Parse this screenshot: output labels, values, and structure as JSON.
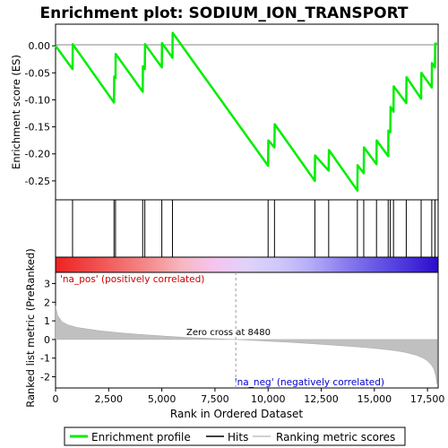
{
  "chart_data": {
    "type": "line",
    "title": "Enrichment plot: SODIUM_ION_TRANSPORT",
    "xlabel": "Rank in Ordered Dataset",
    "es_panel": {
      "ylabel": "Enrichment score (ES)",
      "ylim": [
        -0.285,
        0.04
      ],
      "yticks": [
        0.0,
        -0.05,
        -0.1,
        -0.15,
        -0.2,
        -0.25
      ],
      "ytick_labels": [
        "0.00",
        "-0.05",
        "-0.10",
        "-0.15",
        "-0.20",
        "-0.25"
      ],
      "series": [
        {
          "name": "Enrichment profile",
          "color": "#00ee00",
          "x": [
            0,
            800,
            810,
            2750,
            2760,
            2820,
            2830,
            4100,
            4110,
            4200,
            4210,
            5000,
            5010,
            5500,
            5510,
            10000,
            10010,
            10300,
            10310,
            12200,
            12210,
            12850,
            12860,
            14200,
            14210,
            14500,
            14510,
            15100,
            15110,
            15650,
            15660,
            15750,
            15760,
            15900,
            15910,
            16500,
            16510,
            17200,
            17210,
            17700,
            17710,
            17850,
            17860,
            17950
          ],
          "y": [
            0.0,
            -0.043,
            0.003,
            -0.105,
            -0.057,
            -0.06,
            -0.015,
            -0.085,
            -0.038,
            -0.043,
            0.003,
            -0.04,
            0.005,
            -0.022,
            0.024,
            -0.222,
            -0.175,
            -0.188,
            -0.145,
            -0.25,
            -0.203,
            -0.231,
            -0.193,
            -0.268,
            -0.221,
            -0.236,
            -0.188,
            -0.219,
            -0.175,
            -0.204,
            -0.157,
            -0.16,
            -0.113,
            -0.122,
            -0.075,
            -0.106,
            -0.058,
            -0.098,
            -0.05,
            -0.077,
            -0.032,
            -0.04,
            0.004,
            0.004
          ]
        }
      ]
    },
    "hits": {
      "name": "Hits",
      "x": [
        800,
        2750,
        2820,
        4100,
        4200,
        5000,
        5500,
        10000,
        10300,
        12200,
        12850,
        14200,
        14500,
        15100,
        15650,
        15750,
        15900,
        16500,
        17200,
        17700,
        17850
      ]
    },
    "rank_panel": {
      "ylabel": "Ranked list metric (PreRanked)",
      "ylim": [
        -2.6,
        3.6
      ],
      "yticks": [
        3,
        2,
        1,
        0,
        -1,
        -2
      ],
      "ytick_labels": [
        "3",
        "2",
        "1",
        "0",
        "-1",
        "-2"
      ],
      "series_name": "Ranking metric scores",
      "color": "#c0c0c0",
      "x": [
        0,
        100,
        300,
        600,
        1000,
        2000,
        3000,
        4000,
        5000,
        6000,
        7000,
        8000,
        8480,
        9000,
        10000,
        11000,
        12000,
        13000,
        14000,
        15000,
        16000,
        16500,
        17000,
        17300,
        17500,
        17700,
        17800,
        17900,
        17950
      ],
      "y": [
        1.8,
        1.3,
        0.95,
        0.78,
        0.65,
        0.48,
        0.36,
        0.27,
        0.19,
        0.12,
        0.07,
        0.02,
        0.0,
        -0.03,
        -0.09,
        -0.15,
        -0.22,
        -0.3,
        -0.38,
        -0.47,
        -0.6,
        -0.7,
        -0.85,
        -1.0,
        -1.15,
        -1.4,
        -1.6,
        -2.0,
        -2.4
      ]
    },
    "xlim": [
      0,
      18000
    ],
    "xticks": [
      0,
      2500,
      5000,
      7500,
      10000,
      12500,
      15000,
      17500
    ],
    "xtick_labels": [
      "0",
      "2,500",
      "5,000",
      "7,500",
      "10,000",
      "12,500",
      "15,000",
      "17,500"
    ],
    "heatmap_colors": [
      "#ee2222",
      "#f04545",
      "#f26a6a",
      "#f58f8f",
      "#f7b8c2",
      "#f5c4f0",
      "#e0d2fa",
      "#cfc8fb",
      "#b5acf8",
      "#8e80f0",
      "#6a5ae6",
      "#4a34dc",
      "#2a0ccc"
    ],
    "annotations": {
      "pos_label": "'na_pos' (positively correlated)",
      "neg_label": "'na_neg' (negatively correlated)",
      "zero_cross": "Zero cross at 8480",
      "zero_cross_x": 8480
    },
    "legend": {
      "placement": "bottom",
      "items": [
        "Enrichment profile",
        "Hits",
        "Ranking metric scores"
      ]
    }
  }
}
